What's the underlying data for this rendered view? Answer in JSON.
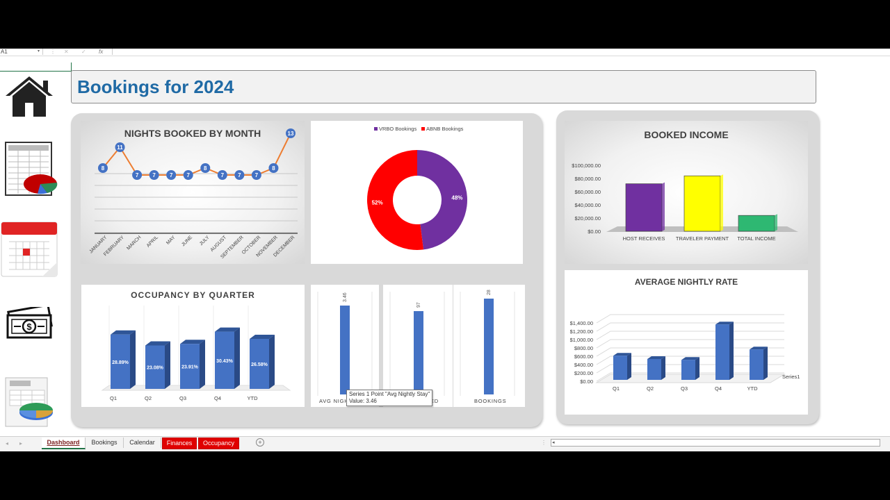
{
  "formula_bar": {
    "name_box": "A1",
    "fx_label": "fx",
    "cancel_icon": "close-icon",
    "enter_icon": "check-icon"
  },
  "title": "Bookings for 2024",
  "nav_icons": [
    "home-icon",
    "spreadsheet-chart-icon",
    "calendar-icon",
    "money-icon",
    "table-pie-icon"
  ],
  "charts": {
    "nights_by_month": {
      "title": "NIGHTS BOOKED BY MONTH",
      "months": [
        "JANUARY",
        "FEBRUARY",
        "MARCH",
        "APRIL",
        "MAY",
        "JUNE",
        "JULY",
        "AUGUST",
        "SEPTEMBER",
        "OCTOBER",
        "NOVEMBER",
        "DECEMBER"
      ],
      "values": [
        8,
        11,
        7,
        7,
        7,
        7,
        8,
        7,
        7,
        7,
        8,
        13
      ]
    },
    "donut": {
      "legend": [
        "VRBO Bookings",
        "ABNB Bookings"
      ],
      "values": [
        48,
        52
      ],
      "labels": [
        "48%",
        "52%"
      ],
      "colors": [
        "#7030a0",
        "#ff0000"
      ]
    },
    "booked_income": {
      "title": "BOOKED INCOME",
      "categories": [
        "HOST RECEIVES",
        "TRAVELER PAYMENT",
        "TOTAL INCOME"
      ],
      "values": [
        72000,
        84000,
        24000
      ],
      "y_ticks": [
        "$100,000.00",
        "$80,000.00",
        "$60,000.00",
        "$40,000.00",
        "$20,000.00",
        "$0.00"
      ],
      "colors": [
        "#7030a0",
        "#ffff00",
        "#2eb872"
      ]
    },
    "occupancy": {
      "title": "OCCUPANCY BY QUARTER",
      "categories": [
        "Q1",
        "Q2",
        "Q3",
        "Q4",
        "YTD"
      ],
      "values": [
        28.89,
        23.08,
        23.91,
        30.43,
        26.58
      ],
      "labels": [
        "28.89%",
        "23.08%",
        "23.91%",
        "30.43%",
        "26.58%"
      ]
    },
    "mini_avg": {
      "label": "AVG NIGH",
      "value_label": "3.46"
    },
    "mini_booked": {
      "label": "ED",
      "value_label": "97"
    },
    "mini_bookings": {
      "label": "BOOKINGS",
      "value_label": "28"
    },
    "avg_nightly_rate": {
      "title": "AVERAGE NIGHTLY RATE",
      "categories": [
        "Q1",
        "Q2",
        "Q3",
        "Q4",
        "YTD"
      ],
      "values": [
        580,
        500,
        480,
        1330,
        730
      ],
      "y_ticks": [
        "$1,400.00",
        "$1,200.00",
        "$1,000.00",
        "$800.00",
        "$600.00",
        "$400.00",
        "$200.00",
        "$0.00"
      ],
      "series_label": "Series1"
    }
  },
  "tooltip": {
    "line1": "Series 1 Point \"Avg Nightly Stay\"",
    "line2": "Value: 3.46"
  },
  "tabs": [
    {
      "label": "Dashboard",
      "state": "active"
    },
    {
      "label": "Bookings",
      "state": "normal"
    },
    {
      "label": "Calendar",
      "state": "normal"
    },
    {
      "label": "Finances",
      "state": "red"
    },
    {
      "label": "Occupancy",
      "state": "red"
    }
  ],
  "tab_nav": {
    "prev": "◂",
    "next": "▸",
    "add": "+"
  }
}
